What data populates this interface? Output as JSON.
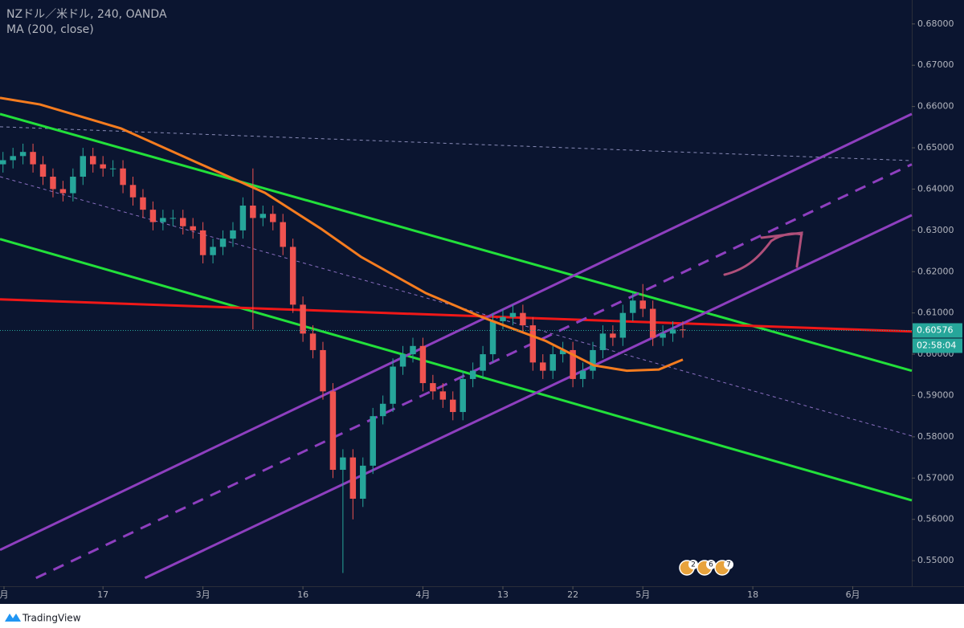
{
  "chart_data": {
    "type": "candlestick",
    "title": "NZドル／米ドル, 240, OANDA",
    "up_color": "#26a69a",
    "down_color": "#ef5350",
    "xlim": [
      -10.3,
      80.9
    ],
    "xticks": [
      {
        "value": -9.9,
        "label": "月"
      },
      {
        "value": 0,
        "label": "17"
      },
      {
        "value": 10,
        "label": "3月"
      },
      {
        "value": 20,
        "label": "16"
      },
      {
        "value": 32,
        "label": "4月"
      },
      {
        "value": 40,
        "label": "13"
      },
      {
        "value": 47,
        "label": "22"
      },
      {
        "value": 54,
        "label": "5月"
      },
      {
        "value": 65,
        "label": "18"
      },
      {
        "value": 75,
        "label": "6月"
      }
    ],
    "ylim": [
      0.5438,
      0.6858
    ],
    "yticks": [
      {
        "value": 0.55,
        "label": "0.55000"
      },
      {
        "value": 0.56,
        "label": "0.56000"
      },
      {
        "value": 0.57,
        "label": "0.57000"
      },
      {
        "value": 0.58,
        "label": "0.58000"
      },
      {
        "value": 0.59,
        "label": "0.59000"
      },
      {
        "value": 0.6,
        "label": "0.60000"
      },
      {
        "value": 0.61,
        "label": "0.61000"
      },
      {
        "value": 0.62,
        "label": "0.62000"
      },
      {
        "value": 0.63,
        "label": "0.63000"
      },
      {
        "value": 0.64,
        "label": "0.64000"
      },
      {
        "value": 0.65,
        "label": "0.65000"
      },
      {
        "value": 0.66,
        "label": "0.66000"
      },
      {
        "value": 0.67,
        "label": "0.67000"
      },
      {
        "value": 0.68,
        "label": "0.68000"
      }
    ],
    "x": [
      -10,
      -9,
      -8,
      -7,
      -6,
      -5,
      -4,
      -3,
      -2,
      -1,
      0,
      1,
      2,
      3,
      4,
      5,
      6,
      7,
      8,
      9,
      10,
      11,
      12,
      13,
      14,
      15,
      16,
      17,
      18,
      19,
      20,
      21,
      22,
      23,
      24,
      25,
      26,
      27,
      28,
      29,
      30,
      31,
      32,
      33,
      34,
      35,
      36,
      37,
      38,
      39,
      40,
      41,
      42,
      43,
      44,
      45,
      46,
      47,
      48,
      49,
      50,
      51,
      52,
      53,
      54,
      55,
      56,
      57,
      58
    ],
    "open": [
      0.646,
      0.647,
      0.648,
      0.649,
      0.646,
      0.643,
      0.64,
      0.639,
      0.643,
      0.648,
      0.646,
      0.645,
      0.645,
      0.641,
      0.638,
      0.635,
      0.632,
      0.633,
      0.633,
      0.631,
      0.63,
      0.624,
      0.626,
      0.628,
      0.63,
      0.636,
      0.633,
      0.634,
      0.632,
      0.626,
      0.612,
      0.605,
      0.601,
      0.591,
      0.572,
      0.575,
      0.565,
      0.573,
      0.585,
      0.588,
      0.597,
      0.6,
      0.602,
      0.593,
      0.591,
      0.589,
      0.586,
      0.594,
      0.596,
      0.6,
      0.608,
      0.609,
      0.61,
      0.607,
      0.598,
      0.596,
      0.6,
      0.601,
      0.594,
      0.596,
      0.601,
      0.605,
      0.604,
      0.61,
      0.613,
      0.611,
      0.604,
      0.605,
      0.606
    ],
    "high": [
      0.649,
      0.65,
      0.651,
      0.651,
      0.648,
      0.645,
      0.642,
      0.645,
      0.65,
      0.65,
      0.648,
      0.647,
      0.647,
      0.643,
      0.64,
      0.637,
      0.635,
      0.635,
      0.635,
      0.633,
      0.632,
      0.628,
      0.63,
      0.632,
      0.638,
      0.645,
      0.636,
      0.636,
      0.634,
      0.628,
      0.614,
      0.607,
      0.603,
      0.593,
      0.577,
      0.577,
      0.575,
      0.587,
      0.59,
      0.599,
      0.602,
      0.604,
      0.604,
      0.595,
      0.593,
      0.591,
      0.596,
      0.598,
      0.602,
      0.61,
      0.611,
      0.612,
      0.612,
      0.609,
      0.6,
      0.602,
      0.603,
      0.603,
      0.598,
      0.603,
      0.607,
      0.607,
      0.612,
      0.615,
      0.617,
      0.613,
      0.607,
      0.608,
      0.608
    ],
    "low": [
      0.644,
      0.645,
      0.646,
      0.644,
      0.641,
      0.638,
      0.637,
      0.637,
      0.641,
      0.644,
      0.643,
      0.643,
      0.639,
      0.636,
      0.633,
      0.63,
      0.63,
      0.631,
      0.629,
      0.628,
      0.622,
      0.622,
      0.624,
      0.626,
      0.628,
      0.606,
      0.631,
      0.63,
      0.624,
      0.61,
      0.603,
      0.599,
      0.589,
      0.57,
      0.547,
      0.56,
      0.563,
      0.571,
      0.583,
      0.586,
      0.595,
      0.598,
      0.591,
      0.589,
      0.587,
      0.584,
      0.584,
      0.592,
      0.594,
      0.598,
      0.606,
      0.607,
      0.605,
      0.596,
      0.594,
      0.594,
      0.598,
      0.592,
      0.592,
      0.594,
      0.599,
      0.602,
      0.602,
      0.608,
      0.609,
      0.602,
      0.602,
      0.603,
      0.604
    ],
    "close": [
      0.647,
      0.648,
      0.649,
      0.646,
      0.643,
      0.64,
      0.639,
      0.643,
      0.648,
      0.646,
      0.645,
      0.645,
      0.641,
      0.638,
      0.635,
      0.632,
      0.633,
      0.633,
      0.631,
      0.63,
      0.624,
      0.626,
      0.628,
      0.63,
      0.636,
      0.633,
      0.634,
      0.632,
      0.626,
      0.612,
      0.605,
      0.601,
      0.591,
      0.572,
      0.575,
      0.565,
      0.573,
      0.585,
      0.588,
      0.597,
      0.6,
      0.602,
      0.593,
      0.591,
      0.589,
      0.586,
      0.594,
      0.596,
      0.6,
      0.608,
      0.609,
      0.61,
      0.607,
      0.598,
      0.596,
      0.6,
      0.601,
      0.594,
      0.596,
      0.601,
      0.605,
      0.604,
      0.61,
      0.613,
      0.611,
      0.604,
      0.605,
      0.606,
      0.6058
    ],
    "ma": {
      "name": "MA (200, close)",
      "color": "#f57c1f",
      "x": [
        -10.3,
        -6.3,
        1.8,
        9.8,
        16.2,
        21.8,
        25.8,
        32.3,
        37.9,
        44.3,
        49.1,
        52.4,
        55.6,
        58
      ],
      "values": [
        0.6621,
        0.6605,
        0.6547,
        0.646,
        0.6391,
        0.6304,
        0.6236,
        0.6148,
        0.609,
        0.6032,
        0.5973,
        0.596,
        0.5963,
        0.5987
      ]
    },
    "lines": [
      {
        "color": "#8a8cb8",
        "style": "thin-dashed",
        "x": [
          -10.3,
          80.9
        ],
        "y": [
          0.6551,
          0.6469
        ]
      },
      {
        "color": "#8a6fc0",
        "style": "thin-dashed",
        "x": [
          -10.3,
          80.9
        ],
        "y": [
          0.643,
          0.5802
        ]
      },
      {
        "color": "#22e03a",
        "style": "solid",
        "x": [
          -10.3,
          80.9
        ],
        "y": [
          0.6582,
          0.596
        ]
      },
      {
        "color": "#22e03a",
        "style": "solid",
        "x": [
          -10.3,
          80.9
        ],
        "y": [
          0.6279,
          0.5646
        ]
      },
      {
        "color": "#f01818",
        "style": "solid",
        "x": [
          -10.3,
          80.9
        ],
        "y": [
          0.6133,
          0.6055
        ]
      },
      {
        "color": "#8e3fbf",
        "style": "solid",
        "x": [
          -10.3,
          80.9
        ],
        "y": [
          0.5526,
          0.6582
        ]
      },
      {
        "color": "#8e3fbf",
        "style": "dashed",
        "x": [
          -6.7,
          80.9
        ],
        "y": [
          0.5458,
          0.646
        ]
      },
      {
        "color": "#8e3fbf",
        "style": "solid",
        "x": [
          4.2,
          80.9
        ],
        "y": [
          0.5458,
          0.6337
        ]
      }
    ],
    "last_price": {
      "value": 0.60576,
      "label": "0.60576"
    },
    "countdown": "02:58:04",
    "events": [
      "2",
      "6",
      "7"
    ],
    "brand": "TradingView"
  }
}
